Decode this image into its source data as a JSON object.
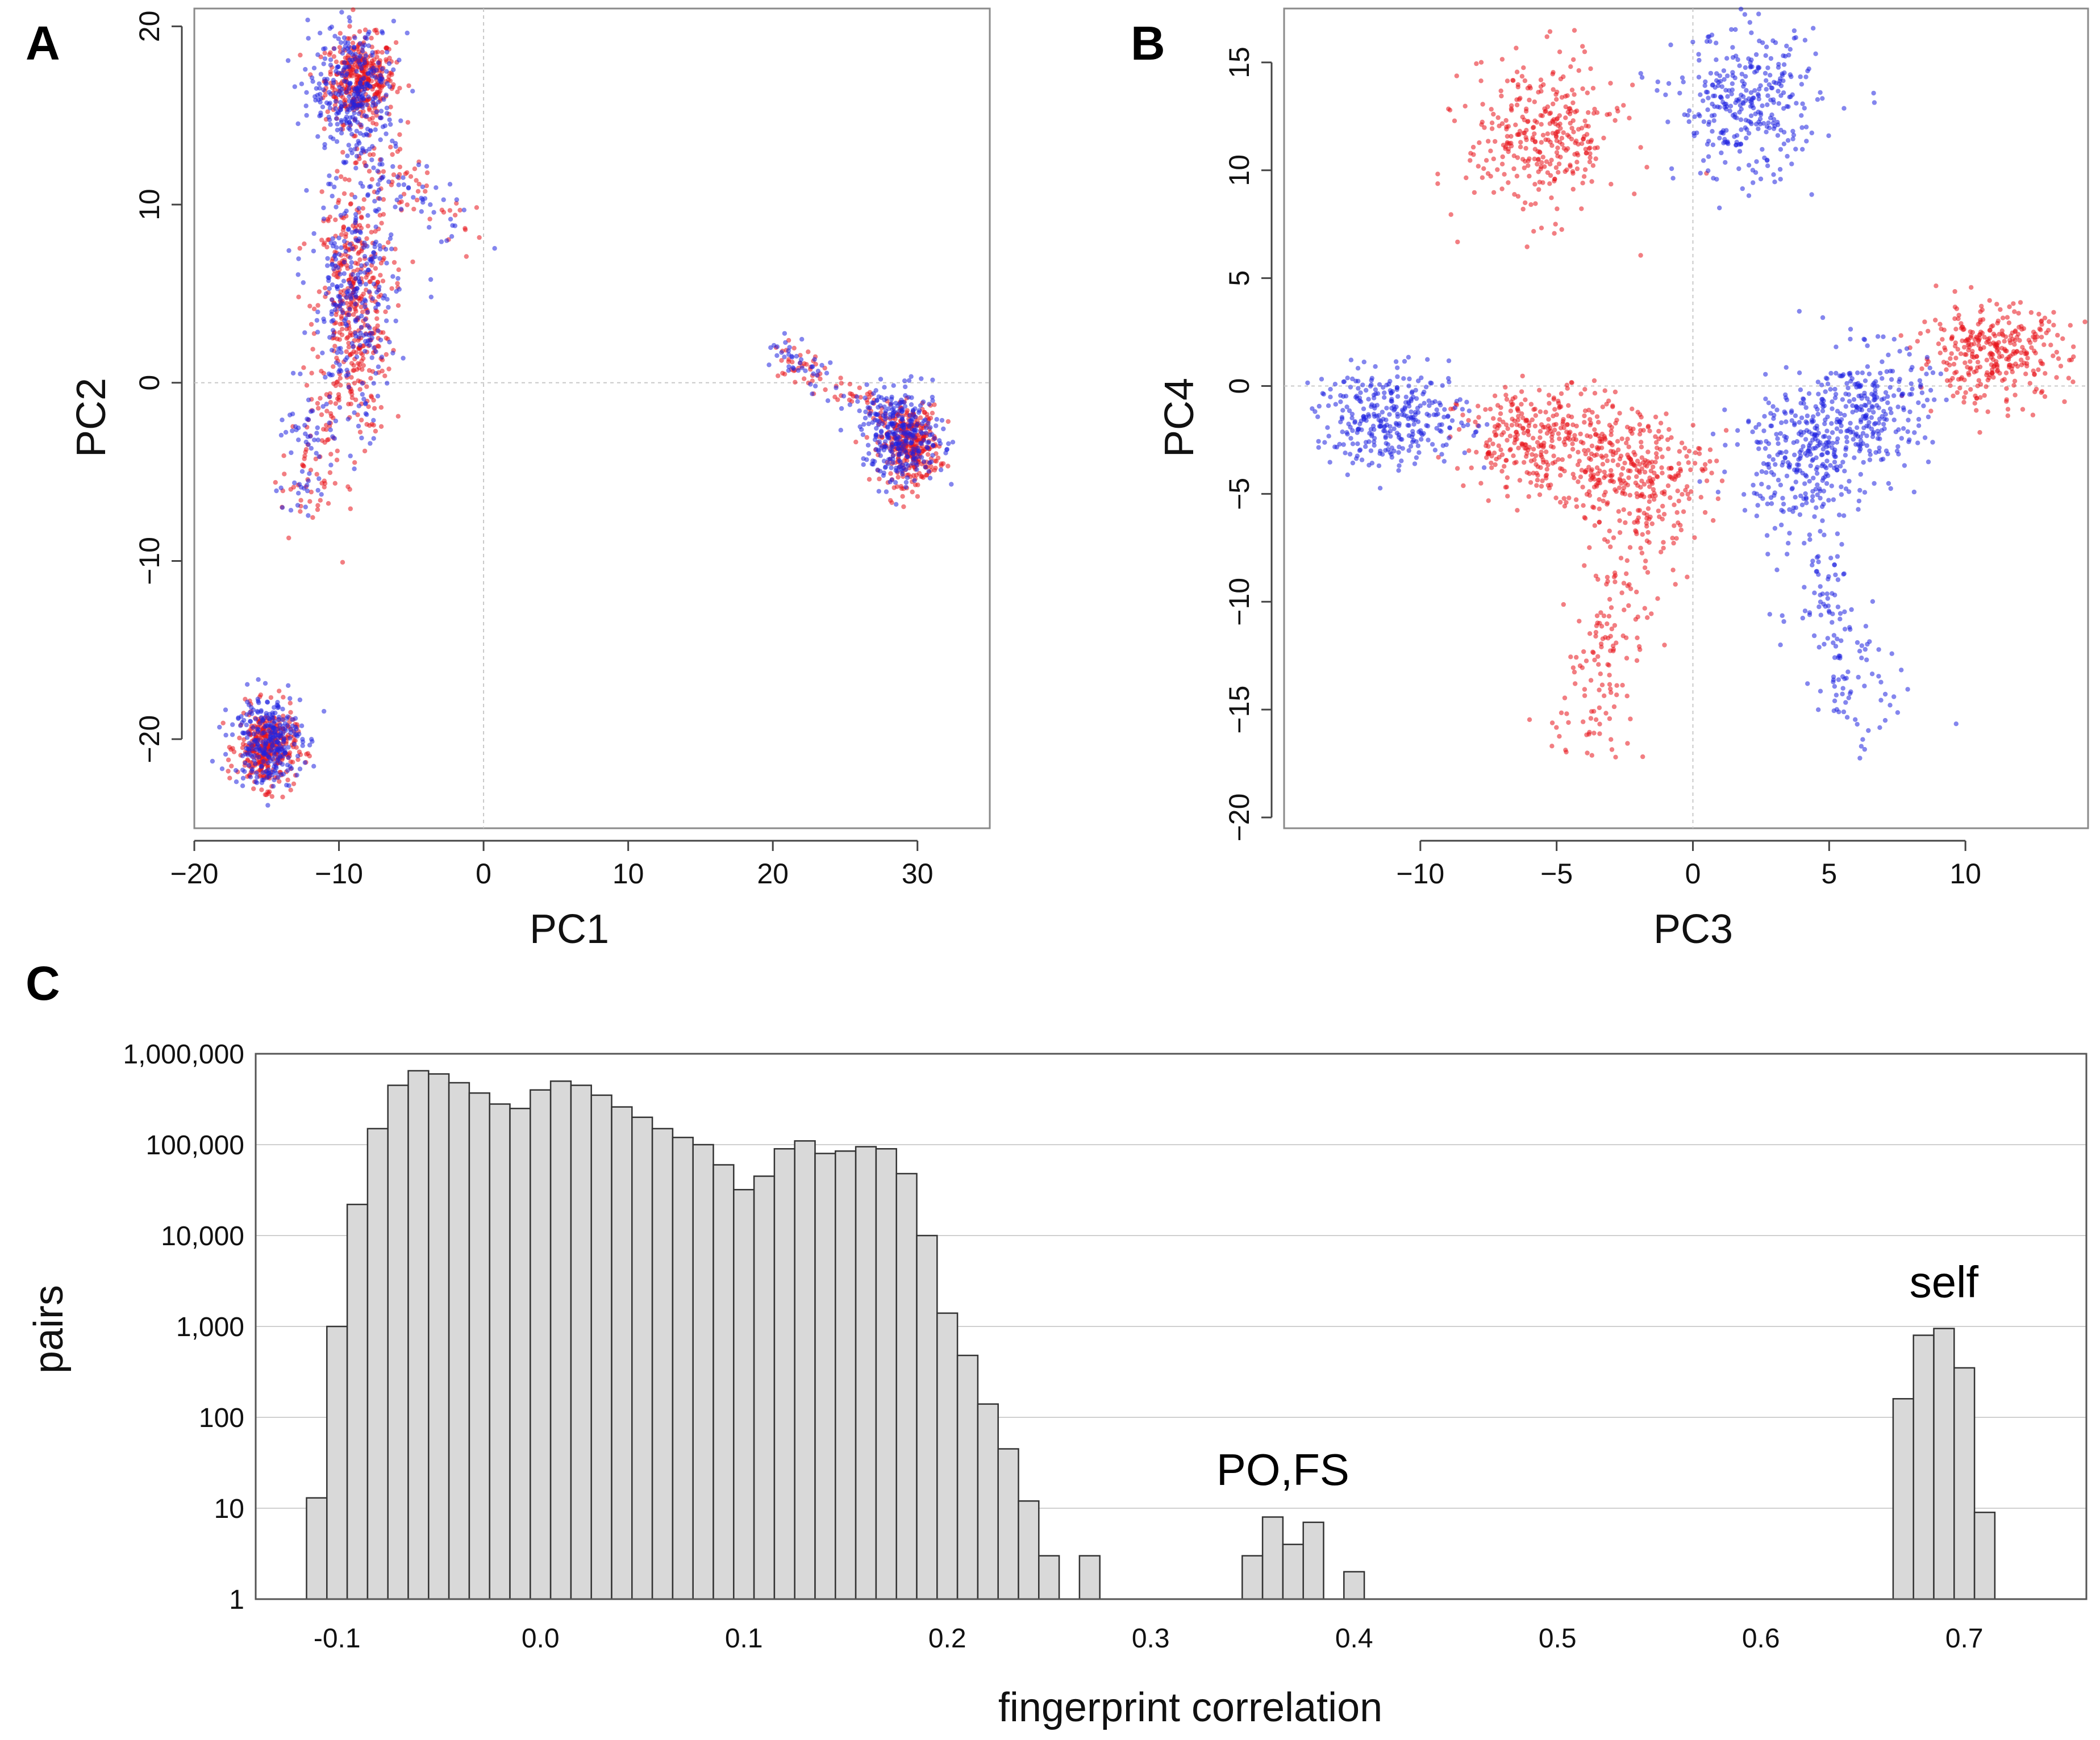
{
  "colors": {
    "group1": "#e8141c",
    "group2": "#1f23e0",
    "bar_fill": "#d9d9d9",
    "bar_stroke": "#333333"
  },
  "chart_data": [
    {
      "panel": "A",
      "type": "scatter",
      "xlabel": "PC1",
      "ylabel": "PC2",
      "xlim": [
        -20,
        35
      ],
      "ylim": [
        -25,
        21
      ],
      "xticks": [
        "−20",
        "−10",
        "0",
        "10",
        "20",
        "30"
      ],
      "xtick_values": [
        -20,
        -10,
        0,
        10,
        20,
        30
      ],
      "yticks": [
        "−20",
        "−10",
        "0",
        "10",
        "20"
      ],
      "ytick_values": [
        -20,
        -10,
        0,
        10,
        20
      ],
      "series": [
        {
          "name": "red",
          "color": "#e8141c",
          "clusters": [
            {
              "cx": -8.5,
              "cy": 17,
              "sx": 1.2,
              "sy": 1.2,
              "n": 380
            },
            {
              "cx": -9,
              "cy": 4,
              "sx": 1.3,
              "sy": 3.5,
              "n": 420
            },
            {
              "cx": 29.5,
              "cy": -3.5,
              "sx": 1.0,
              "sy": 1.1,
              "n": 350
            },
            {
              "cx": -15,
              "cy": -20.5,
              "sx": 1.0,
              "sy": 1.1,
              "n": 360
            },
            {
              "cx": -12,
              "cy": -5,
              "sx": 1.0,
              "sy": 2.0,
              "n": 60
            }
          ],
          "trails": [
            {
              "x1": -9,
              "y1": 13,
              "x2": -1,
              "y2": 9,
              "n": 60,
              "s": 0.8
            },
            {
              "x1": 20,
              "y1": 2,
              "x2": 28,
              "y2": -2,
              "n": 70,
              "s": 0.5
            }
          ]
        },
        {
          "name": "blue",
          "color": "#1f23e0",
          "clusters": [
            {
              "cx": -9,
              "cy": 16.5,
              "sx": 1.5,
              "sy": 1.8,
              "n": 300
            },
            {
              "cx": -9,
              "cy": 4.5,
              "sx": 1.5,
              "sy": 3.8,
              "n": 300
            },
            {
              "cx": 29,
              "cy": -3,
              "sx": 1.4,
              "sy": 1.3,
              "n": 300
            },
            {
              "cx": -15,
              "cy": -20,
              "sx": 1.2,
              "sy": 1.3,
              "n": 280
            },
            {
              "cx": -12.5,
              "cy": -4,
              "sx": 1.0,
              "sy": 2.0,
              "n": 50
            }
          ],
          "trails": [
            {
              "x1": -9,
              "y1": 13,
              "x2": -1,
              "y2": 9,
              "n": 50,
              "s": 0.8
            },
            {
              "x1": 20,
              "y1": 2,
              "x2": 28,
              "y2": -2,
              "n": 60,
              "s": 0.5
            }
          ]
        }
      ]
    },
    {
      "panel": "B",
      "type": "scatter",
      "xlabel": "PC3",
      "ylabel": "PC4",
      "xlim": [
        -15,
        14.5
      ],
      "ylim": [
        -20.5,
        17.5
      ],
      "xticks": [
        "−10",
        "−5",
        "0",
        "5",
        "10"
      ],
      "xtick_values": [
        -10,
        -5,
        0,
        5,
        10
      ],
      "yticks": [
        "−20",
        "−15",
        "−10",
        "−5",
        "0",
        "5",
        "10",
        "15"
      ],
      "ytick_values": [
        -20,
        -15,
        -10,
        -5,
        0,
        5,
        10,
        15
      ],
      "series": [
        {
          "name": "red",
          "color": "#e8141c",
          "clusters": [
            {
              "cx": -5.5,
              "cy": 11.5,
              "sx": 1.4,
              "sy": 1.8,
              "n": 330
            },
            {
              "cx": -5.5,
              "cy": -2.5,
              "sx": 1.5,
              "sy": 1.2,
              "n": 330
            },
            {
              "cx": -2,
              "cy": -4,
              "sx": 1.3,
              "sy": 1.4,
              "n": 280
            },
            {
              "cx": 11,
              "cy": 1.5,
              "sx": 1.4,
              "sy": 1.1,
              "n": 330
            }
          ],
          "trails": [
            {
              "x1": -2,
              "y1": -6,
              "x2": -4,
              "y2": -17,
              "n": 160,
              "s": 0.8
            }
          ]
        },
        {
          "name": "blue",
          "color": "#1f23e0",
          "clusters": [
            {
              "cx": 2,
              "cy": 13,
              "sx": 1.3,
              "sy": 1.7,
              "n": 330
            },
            {
              "cx": -11,
              "cy": -1.5,
              "sx": 1.4,
              "sy": 1.1,
              "n": 330
            },
            {
              "cx": 4,
              "cy": -3,
              "sx": 1.2,
              "sy": 1.5,
              "n": 280
            },
            {
              "cx": 6.5,
              "cy": -1,
              "sx": 1.1,
              "sy": 1.4,
              "n": 250
            }
          ],
          "trails": [
            {
              "x1": 4,
              "y1": -6,
              "x2": 6.5,
              "y2": -16,
              "n": 150,
              "s": 0.8
            }
          ]
        }
      ]
    },
    {
      "panel": "C",
      "type": "bar",
      "yscale": "log",
      "xlabel": "fingerprint correlation",
      "ylabel": "pairs",
      "xlim": [
        -0.14,
        0.76
      ],
      "ylim": [
        1,
        1000000
      ],
      "bin_width": 0.01,
      "xticks": [
        "-0.1",
        "0.0",
        "0.1",
        "0.2",
        "0.3",
        "0.4",
        "0.5",
        "0.6",
        "0.7"
      ],
      "xtick_values": [
        -0.1,
        0.0,
        0.1,
        0.2,
        0.3,
        0.4,
        0.5,
        0.6,
        0.7
      ],
      "yticks": [
        "1",
        "10",
        "100",
        "1,000",
        "10,000",
        "100,000",
        "1,000,000"
      ],
      "ytick_values": [
        1,
        10,
        100,
        1000,
        10000,
        100000,
        1000000
      ],
      "bins": [
        {
          "x": -0.11,
          "v": 13
        },
        {
          "x": -0.1,
          "v": 1000
        },
        {
          "x": -0.09,
          "v": 22000
        },
        {
          "x": -0.08,
          "v": 150000
        },
        {
          "x": -0.07,
          "v": 450000
        },
        {
          "x": -0.06,
          "v": 650000
        },
        {
          "x": -0.05,
          "v": 600000
        },
        {
          "x": -0.04,
          "v": 480000
        },
        {
          "x": -0.03,
          "v": 370000
        },
        {
          "x": -0.02,
          "v": 280000
        },
        {
          "x": -0.01,
          "v": 250000
        },
        {
          "x": 0.0,
          "v": 400000
        },
        {
          "x": 0.01,
          "v": 500000
        },
        {
          "x": 0.02,
          "v": 450000
        },
        {
          "x": 0.03,
          "v": 350000
        },
        {
          "x": 0.04,
          "v": 260000
        },
        {
          "x": 0.05,
          "v": 200000
        },
        {
          "x": 0.06,
          "v": 150000
        },
        {
          "x": 0.07,
          "v": 120000
        },
        {
          "x": 0.08,
          "v": 100000
        },
        {
          "x": 0.09,
          "v": 60000
        },
        {
          "x": 0.1,
          "v": 32000
        },
        {
          "x": 0.11,
          "v": 45000
        },
        {
          "x": 0.12,
          "v": 90000
        },
        {
          "x": 0.13,
          "v": 110000
        },
        {
          "x": 0.14,
          "v": 80000
        },
        {
          "x": 0.15,
          "v": 85000
        },
        {
          "x": 0.16,
          "v": 95000
        },
        {
          "x": 0.17,
          "v": 90000
        },
        {
          "x": 0.18,
          "v": 48000
        },
        {
          "x": 0.19,
          "v": 10000
        },
        {
          "x": 0.2,
          "v": 1400
        },
        {
          "x": 0.21,
          "v": 480
        },
        {
          "x": 0.22,
          "v": 140
        },
        {
          "x": 0.23,
          "v": 45
        },
        {
          "x": 0.24,
          "v": 12
        },
        {
          "x": 0.25,
          "v": 3
        },
        {
          "x": 0.27,
          "v": 3
        },
        {
          "x": 0.35,
          "v": 3
        },
        {
          "x": 0.36,
          "v": 8
        },
        {
          "x": 0.37,
          "v": 4
        },
        {
          "x": 0.38,
          "v": 7
        },
        {
          "x": 0.4,
          "v": 2
        },
        {
          "x": 0.67,
          "v": 160
        },
        {
          "x": 0.68,
          "v": 800
        },
        {
          "x": 0.69,
          "v": 950
        },
        {
          "x": 0.7,
          "v": 350
        },
        {
          "x": 0.71,
          "v": 9
        }
      ],
      "annotations": [
        {
          "text": "PO,FS",
          "x": 0.365,
          "y": 18
        },
        {
          "text": "self",
          "x": 0.69,
          "y": 2100
        }
      ]
    }
  ],
  "panel_labels": {
    "a": "A",
    "b": "B",
    "c": "C"
  }
}
